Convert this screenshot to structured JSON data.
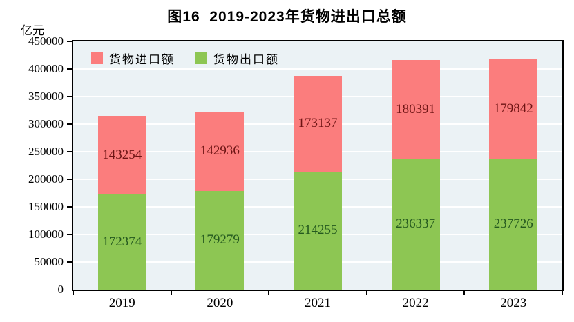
{
  "title": "图16  2019-2023年货物进出口总额",
  "y_axis_unit": "亿元",
  "legend": {
    "items": [
      {
        "label": "货物进口额",
        "color": "#fb7d7d"
      },
      {
        "label": "货物出口额",
        "color": "#8dc653"
      }
    ]
  },
  "colors": {
    "import_bar": "#fb7d7d",
    "export_bar": "#8dc653",
    "import_value_text": "#6e1414",
    "export_value_text": "#24591f",
    "plot_background": "#ebf2f5",
    "gridline": "#ffffff",
    "frame": "#000000"
  },
  "chart_data": {
    "type": "bar",
    "stacked": true,
    "title": "图16  2019-2023年货物进出口总额",
    "ylabel": "亿元",
    "xlabel": "",
    "categories": [
      "2019",
      "2020",
      "2021",
      "2022",
      "2023"
    ],
    "series": [
      {
        "name": "货物出口额",
        "color": "#8dc653",
        "label_color": "#24591f",
        "values": [
          172374,
          179279,
          214255,
          236337,
          237726
        ]
      },
      {
        "name": "货物进口额",
        "color": "#fb7d7d",
        "label_color": "#6e1414",
        "values": [
          143254,
          142936,
          173137,
          180391,
          179842
        ]
      }
    ],
    "totals": [
      315628,
      322215,
      387392,
      416728,
      417568
    ],
    "ylim": [
      0,
      450000
    ],
    "yticks": [
      0,
      50000,
      100000,
      150000,
      200000,
      250000,
      300000,
      350000,
      400000,
      450000
    ],
    "grid": true,
    "legend_position": "top-left-inside"
  }
}
